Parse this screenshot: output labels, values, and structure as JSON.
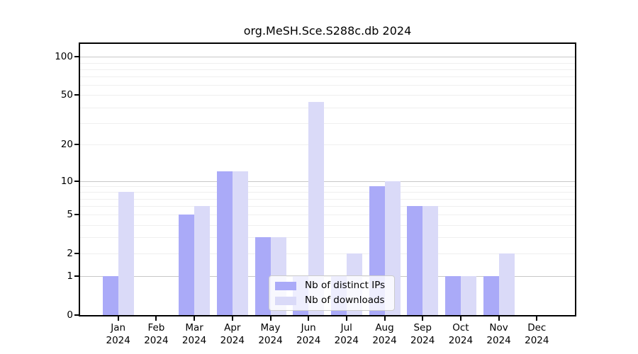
{
  "title": "org.MeSH.Sce.S288c.db 2024",
  "chart_data": {
    "type": "bar",
    "title": "org.MeSH.Sce.S288c.db 2024",
    "scale": "log10(1+x)",
    "categories": [
      {
        "month": "Jan",
        "year": "2024"
      },
      {
        "month": "Feb",
        "year": "2024"
      },
      {
        "month": "Mar",
        "year": "2024"
      },
      {
        "month": "Apr",
        "year": "2024"
      },
      {
        "month": "May",
        "year": "2024"
      },
      {
        "month": "Jun",
        "year": "2024"
      },
      {
        "month": "Jul",
        "year": "2024"
      },
      {
        "month": "Aug",
        "year": "2024"
      },
      {
        "month": "Sep",
        "year": "2024"
      },
      {
        "month": "Oct",
        "year": "2024"
      },
      {
        "month": "Nov",
        "year": "2024"
      },
      {
        "month": "Dec",
        "year": "2024"
      }
    ],
    "series": [
      {
        "name": "Nb of distinct IPs",
        "color": "#aaaaf8",
        "values": [
          1,
          0,
          5,
          12,
          3,
          1,
          1,
          9,
          6,
          1,
          1,
          0
        ]
      },
      {
        "name": "Nb of downloads",
        "color": "#dadaf8",
        "values": [
          8,
          0,
          6,
          12,
          3,
          44,
          2,
          10,
          6,
          1,
          2,
          0
        ]
      }
    ],
    "yticks": [
      0,
      1,
      2,
      5,
      10,
      20,
      50,
      100
    ],
    "ylim": [
      0,
      126
    ],
    "grid": true,
    "legend_position": "bottom-center-inside"
  },
  "colors": {
    "major_grid": "#c8c8c8",
    "minor_grid": "#efefef",
    "axis": "#000000",
    "background": "#ffffff"
  }
}
